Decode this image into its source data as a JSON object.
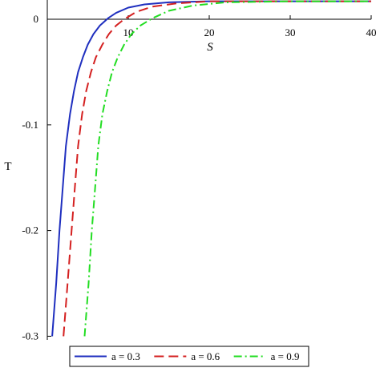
{
  "chart_data": {
    "type": "line",
    "xlabel": "S",
    "ylabel": "T",
    "xlim": [
      0,
      40
    ],
    "ylim": [
      -0.3,
      0.017
    ],
    "x_ticks": [
      10,
      20,
      30,
      40
    ],
    "x_tick_labels": [
      "10",
      "20",
      "30",
      "40"
    ],
    "y_ticks": [
      0,
      -0.1,
      -0.2,
      -0.3
    ],
    "y_tick_labels": [
      "0",
      "-0.1",
      "-0.2",
      "-0.3"
    ],
    "grid": false,
    "legend_position": "bottom",
    "series": [
      {
        "name": "a = 0.3",
        "color": "#1f2fbf",
        "dash": "solid",
        "x": [
          0.6,
          1.1,
          1.5,
          1.9,
          2.3,
          2.8,
          3.3,
          3.8,
          4.4,
          5.0,
          5.7,
          6.5,
          7.5,
          8.5,
          10,
          12,
          15,
          20,
          30,
          40
        ],
        "y": [
          -0.3,
          -0.25,
          -0.2,
          -0.16,
          -0.12,
          -0.09,
          -0.068,
          -0.05,
          -0.036,
          -0.024,
          -0.014,
          -0.006,
          0.001,
          0.006,
          0.011,
          0.014,
          0.016,
          0.017,
          0.017,
          0.017
        ]
      },
      {
        "name": "a = 0.6",
        "color": "#d42020",
        "dash": "dashed",
        "x": [
          2.0,
          2.5,
          3.0,
          3.4,
          3.8,
          4.3,
          4.8,
          5.4,
          6.0,
          6.8,
          7.6,
          8.5,
          9.5,
          11,
          13,
          16,
          20,
          30,
          40
        ],
        "y": [
          -0.3,
          -0.25,
          -0.2,
          -0.16,
          -0.12,
          -0.09,
          -0.068,
          -0.05,
          -0.036,
          -0.024,
          -0.014,
          -0.006,
          0.0,
          0.007,
          0.012,
          0.015,
          0.017,
          0.017,
          0.017
        ]
      },
      {
        "name": "a = 0.9",
        "color": "#22dd22",
        "dash": "dashdot",
        "x": [
          4.6,
          5.1,
          5.5,
          5.9,
          6.3,
          6.8,
          7.4,
          8.0,
          8.7,
          9.5,
          10.4,
          11.5,
          13,
          15,
          18,
          22,
          30,
          40
        ],
        "y": [
          -0.3,
          -0.25,
          -0.2,
          -0.16,
          -0.12,
          -0.09,
          -0.068,
          -0.05,
          -0.036,
          -0.024,
          -0.014,
          -0.006,
          0.001,
          0.008,
          0.013,
          0.016,
          0.017,
          0.017
        ]
      }
    ]
  }
}
